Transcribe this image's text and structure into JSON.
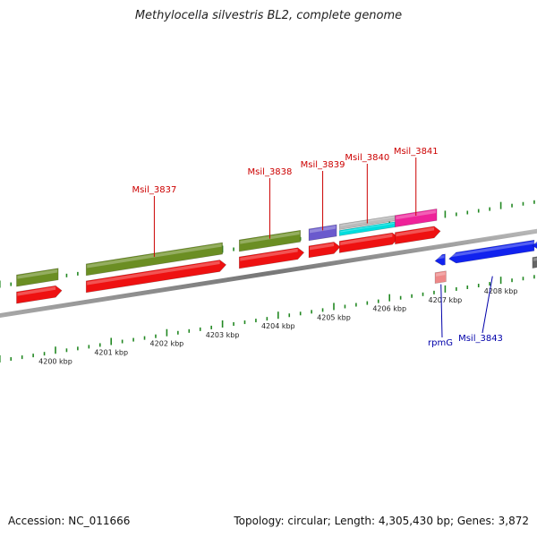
{
  "title": "Methylocella silvestris BL2, complete genome",
  "accession": "Accession: NC_011666",
  "summary": "Topology: circular; Length: 4,305,430 bp; Genes: 3,872",
  "colors": {
    "cds": "#ee1111",
    "cog_green": "#6b8e23",
    "cog_purple": "#6a5acd",
    "cog_grey": "#bbbbbb",
    "cog_cyan": "#00dddd",
    "cog_magenta": "#ee2299",
    "reverse_cds": "#1122ee",
    "trna": "#ee8888",
    "backbone": "#888888",
    "tick": "#228822",
    "label_forward": "#cc0000",
    "label_reverse": "#0000aa"
  },
  "kbp_ticks": [
    {
      "kbp": 4200,
      "label": "4200 kbp"
    },
    {
      "kbp": 4201,
      "label": "4201 kbp"
    },
    {
      "kbp": 4202,
      "label": "4202 kbp"
    },
    {
      "kbp": 4203,
      "label": "4203 kbp"
    },
    {
      "kbp": 4204,
      "label": "4204 kbp"
    },
    {
      "kbp": 4205,
      "label": "4205 kbp"
    },
    {
      "kbp": 4206,
      "label": "4206 kbp"
    },
    {
      "kbp": 4207,
      "label": "4207 kbp"
    },
    {
      "kbp": 4208,
      "label": "4208 kbp"
    }
  ],
  "forward_genes": [
    {
      "name": "",
      "start_kbp": 4199.3,
      "end_kbp": 4200.05,
      "cog": "cog_green"
    },
    {
      "name": "Msil_3837",
      "start_kbp": 4200.55,
      "end_kbp": 4203.0,
      "cog": "cog_green"
    },
    {
      "name": "Msil_3838",
      "start_kbp": 4203.3,
      "end_kbp": 4204.4,
      "cog": "cog_green"
    },
    {
      "name": "Msil_3839",
      "start_kbp": 4204.55,
      "end_kbp": 4205.05,
      "cog": "cog_purple"
    },
    {
      "name": "Msil_3840",
      "start_kbp": 4205.1,
      "end_kbp": 4206.1,
      "cog": "cog_grey",
      "cog2": "cog_cyan"
    },
    {
      "name": "Msil_3841",
      "start_kbp": 4206.1,
      "end_kbp": 4206.85,
      "cog": "cog_magenta"
    }
  ],
  "reverse_genes": [
    {
      "name": "rpmG",
      "start_kbp": 4206.85,
      "end_kbp": 4207.0,
      "type": "cds_trna"
    },
    {
      "name": "Msil_3843",
      "start_kbp": 4207.1,
      "end_kbp": 4208.6,
      "type": "cds"
    },
    {
      "name": "",
      "start_kbp": 4208.6,
      "end_kbp": 4209.0,
      "type": "cds"
    }
  ]
}
